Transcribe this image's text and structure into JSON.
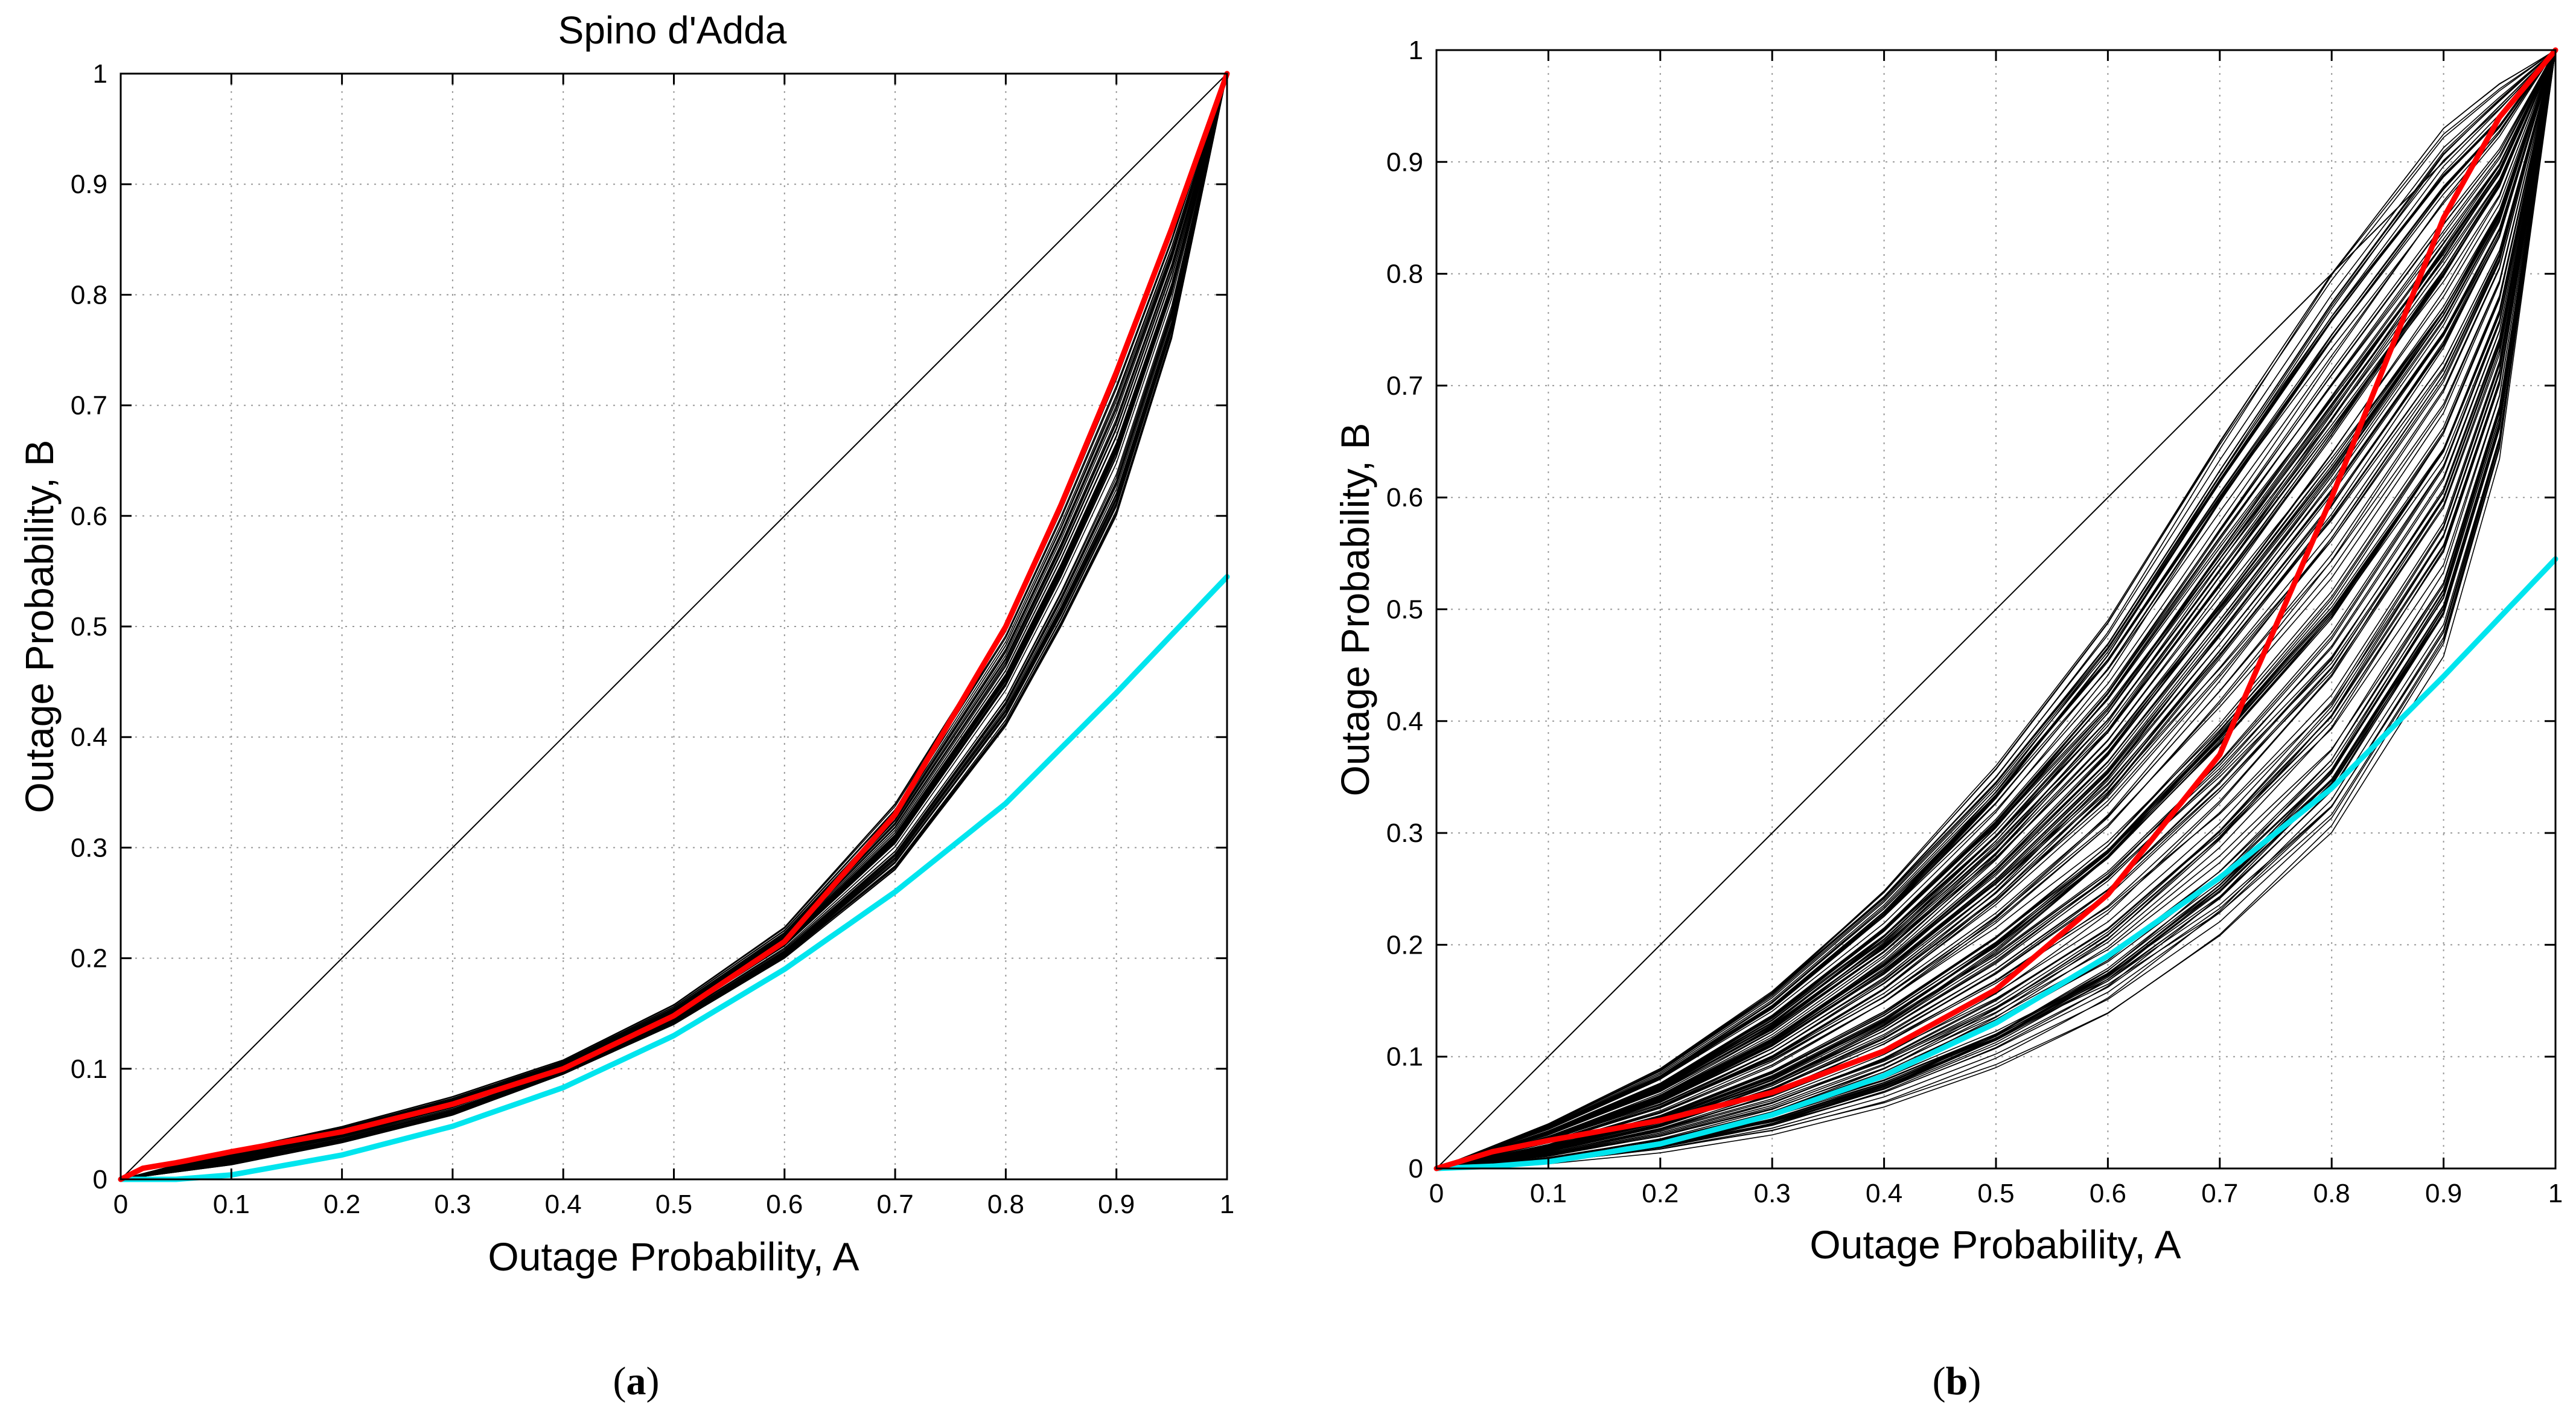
{
  "figure": {
    "panels": [
      {
        "id": "a",
        "caption_open": "(",
        "caption_letter": "a",
        "caption_close": ")"
      },
      {
        "id": "b",
        "caption_open": "(",
        "caption_letter": "b",
        "caption_close": ")"
      }
    ]
  },
  "colors": {
    "ensemble": "#000000",
    "red_curve": "#ff0000",
    "cyan_curve": "#00e5ee",
    "diagonal": "#000000",
    "grid": "#9a9a9a"
  },
  "chart_data": [
    {
      "type": "line",
      "title": "Spino d'Adda",
      "xlabel": "Outage Probability, A",
      "ylabel": "Outage Probability, B",
      "xlim": [
        0,
        1
      ],
      "ylim": [
        0,
        1
      ],
      "xticks": [
        "0",
        "0.1",
        "0.2",
        "0.3",
        "0.4",
        "0.5",
        "0.6",
        "0.7",
        "0.8",
        "0.9",
        "1"
      ],
      "yticks": [
        "0",
        "0.1",
        "0.2",
        "0.3",
        "0.4",
        "0.5",
        "0.6",
        "0.7",
        "0.8",
        "0.9",
        "1"
      ],
      "grid": true,
      "series": [
        {
          "name": "diagonal (B = A)",
          "color": "#000000",
          "x": [
            0,
            1
          ],
          "y": [
            0,
            1
          ]
        },
        {
          "name": "red curve",
          "color": "#ff0000",
          "x": [
            0,
            0.02,
            0.05,
            0.1,
            0.2,
            0.3,
            0.4,
            0.5,
            0.6,
            0.7,
            0.8,
            0.85,
            0.9,
            0.95,
            1.0
          ],
          "y": [
            0,
            0.01,
            0.015,
            0.025,
            0.043,
            0.068,
            0.1,
            0.148,
            0.215,
            0.33,
            0.5,
            0.61,
            0.73,
            0.86,
            1.0
          ]
        },
        {
          "name": "cyan curve",
          "color": "#00e5ee",
          "x": [
            0,
            0.05,
            0.1,
            0.2,
            0.3,
            0.4,
            0.5,
            0.6,
            0.7,
            0.8,
            0.9,
            1.0
          ],
          "y": [
            0,
            0.0,
            0.004,
            0.022,
            0.048,
            0.083,
            0.13,
            0.19,
            0.26,
            0.34,
            0.44,
            0.545
          ]
        },
        {
          "name": "ensemble envelope lower",
          "color": "#000000",
          "x": [
            0,
            0.1,
            0.2,
            0.3,
            0.4,
            0.5,
            0.6,
            0.7,
            0.8,
            0.85,
            0.9,
            0.95,
            1.0
          ],
          "y": [
            0,
            0.013,
            0.033,
            0.058,
            0.095,
            0.14,
            0.2,
            0.28,
            0.41,
            0.5,
            0.6,
            0.76,
            1.0
          ]
        },
        {
          "name": "ensemble envelope upper",
          "color": "#000000",
          "x": [
            0,
            0.1,
            0.2,
            0.3,
            0.4,
            0.5,
            0.6,
            0.7,
            0.8,
            0.85,
            0.9,
            0.95,
            1.0
          ],
          "y": [
            0,
            0.026,
            0.048,
            0.075,
            0.108,
            0.158,
            0.228,
            0.34,
            0.5,
            0.61,
            0.73,
            0.86,
            1.0
          ]
        }
      ],
      "ensemble_count": 60
    },
    {
      "type": "line",
      "title": "",
      "xlabel": "Outage Probability, A",
      "ylabel": "Outage Probability, B",
      "xlim": [
        0,
        1
      ],
      "ylim": [
        0,
        1
      ],
      "xticks": [
        "0",
        "0.1",
        "0.2",
        "0.3",
        "0.4",
        "0.5",
        "0.6",
        "0.7",
        "0.8",
        "0.9",
        "1"
      ],
      "yticks": [
        "0",
        "0.1",
        "0.2",
        "0.3",
        "0.4",
        "0.5",
        "0.6",
        "0.7",
        "0.8",
        "0.9",
        "1"
      ],
      "grid": true,
      "series": [
        {
          "name": "diagonal (B = A)",
          "color": "#000000",
          "x": [
            0,
            1
          ],
          "y": [
            0,
            1
          ]
        },
        {
          "name": "red curve",
          "color": "#ff0000",
          "x": [
            0,
            0.05,
            0.1,
            0.2,
            0.3,
            0.4,
            0.5,
            0.6,
            0.7,
            0.8,
            0.9,
            0.95,
            1.0
          ],
          "y": [
            0,
            0.015,
            0.025,
            0.043,
            0.068,
            0.105,
            0.16,
            0.245,
            0.37,
            0.6,
            0.85,
            0.94,
            1.0
          ]
        },
        {
          "name": "cyan curve",
          "color": "#00e5ee",
          "x": [
            0,
            0.05,
            0.1,
            0.2,
            0.3,
            0.4,
            0.5,
            0.6,
            0.7,
            0.8,
            0.9,
            1.0
          ],
          "y": [
            0,
            0.002,
            0.006,
            0.022,
            0.048,
            0.083,
            0.13,
            0.19,
            0.26,
            0.34,
            0.44,
            0.545
          ]
        },
        {
          "name": "ensemble envelope lower",
          "color": "#000000",
          "x": [
            0,
            0.1,
            0.2,
            0.3,
            0.4,
            0.5,
            0.6,
            0.7,
            0.8,
            0.9,
            0.95,
            1.0
          ],
          "y": [
            0,
            0.004,
            0.014,
            0.03,
            0.055,
            0.09,
            0.135,
            0.2,
            0.29,
            0.45,
            0.63,
            1.0
          ]
        },
        {
          "name": "ensemble envelope upper",
          "color": "#000000",
          "x": [
            0,
            0.1,
            0.2,
            0.3,
            0.4,
            0.5,
            0.6,
            0.7,
            0.8,
            0.9,
            0.95,
            1.0
          ],
          "y": [
            0,
            0.04,
            0.09,
            0.16,
            0.25,
            0.36,
            0.49,
            0.65,
            0.8,
            0.93,
            0.97,
            1.0
          ]
        }
      ],
      "ensemble_count": 160
    }
  ]
}
